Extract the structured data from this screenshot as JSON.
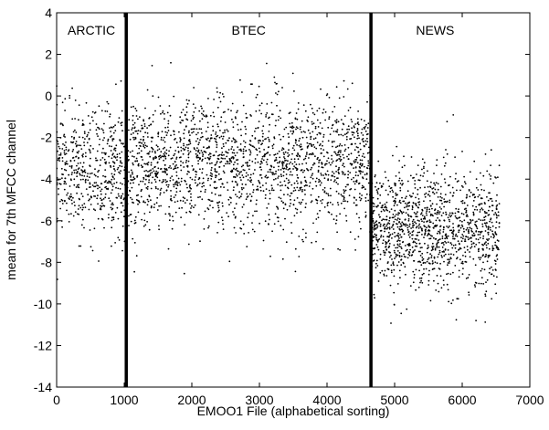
{
  "chart_data": {
    "type": "scatter",
    "xlabel": "EMOO1 File (alphabetical sorting)",
    "ylabel": "mean for 7th MFCC channel",
    "xlim": [
      0,
      7000
    ],
    "ylim": [
      -14,
      4
    ],
    "xticks": [
      0,
      1000,
      2000,
      3000,
      4000,
      5000,
      6000,
      7000
    ],
    "yticks": [
      4,
      2,
      0,
      -2,
      -4,
      -6,
      -8,
      -10,
      -12,
      -14
    ],
    "grid": false,
    "legend": "none",
    "dividers": [
      1030,
      4650
    ],
    "regions": [
      {
        "label": "ARCTIC",
        "x_range": [
          0,
          1030
        ],
        "y_center": -3.6,
        "y_spread": 1.5,
        "count": 520
      },
      {
        "label": "BTEC",
        "x_range": [
          1030,
          4650
        ],
        "y_center": -3.3,
        "y_spread": 1.55,
        "count": 1900
      },
      {
        "label": "NEWS",
        "x_range": [
          4650,
          6550
        ],
        "y_center": -6.4,
        "y_spread": 1.45,
        "count": 1250
      }
    ],
    "point_color": "#000000",
    "divider_color": "#000000"
  }
}
